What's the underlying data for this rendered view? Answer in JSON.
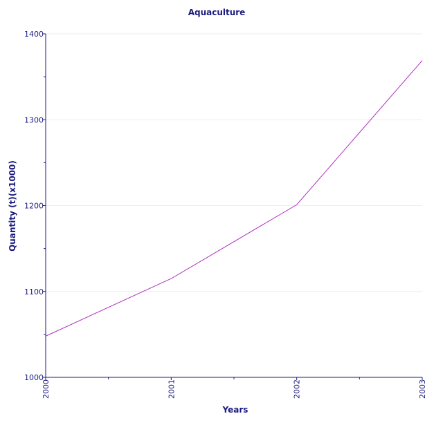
{
  "chart_data": {
    "type": "line",
    "title": "Aquaculture",
    "xlabel": "Years",
    "ylabel": "Quantity (t)(x1000)",
    "x": [
      "2000",
      "2001",
      "2002",
      "2003"
    ],
    "xlim": [
      2000,
      2003
    ],
    "ylim": [
      1000,
      1400
    ],
    "y_ticks": [
      "1000",
      "1100",
      "1200",
      "1300",
      "1400"
    ],
    "x_ticks": [
      "2000",
      "2001",
      "2002",
      "2003"
    ],
    "series": [
      {
        "values": [
          1048,
          1115,
          1201,
          1369
        ],
        "color": "#b030c0"
      }
    ],
    "grid": true,
    "legend": "none"
  },
  "colors": {
    "axis": "#1a1a80",
    "grid": "#ededed",
    "line": "#b030c0"
  }
}
